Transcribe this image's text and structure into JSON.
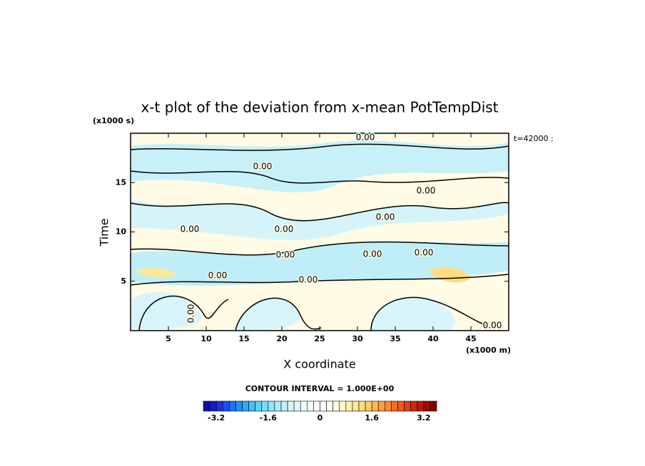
{
  "chart_data": {
    "type": "contour",
    "title": "x-t plot of the deviation from x-mean PotTempDist",
    "y_unit_label": "(x1000 s)",
    "x_unit_label": "(x1000 m)",
    "ylabel": "Time",
    "xlabel": "X coordinate",
    "time_label": "t=42000 :",
    "contour_interval_label": "CONTOUR INTERVAL = 1.000E+00",
    "contour_labels": [
      "0.00",
      "0.00",
      "0.00",
      "0.00",
      "0.00",
      "0.00",
      "0.00",
      "0.00",
      "0.00",
      "0.00",
      "0.00",
      "0.00",
      "0.00"
    ],
    "xlim": [
      0,
      50
    ],
    "ylim": [
      0,
      20
    ],
    "xticks": [
      5,
      10,
      15,
      20,
      25,
      30,
      35,
      40,
      45
    ],
    "yticks": [
      5,
      10,
      15
    ],
    "colorbar": {
      "levels": [
        -3.6,
        -3.4,
        -3.2,
        -3,
        -2.8,
        -2.6,
        -2.4,
        -2.2,
        -2,
        -1.8,
        -1.6,
        -1.4,
        -1.2,
        -1,
        -0.8,
        -0.6,
        -0.4,
        -0.2,
        0,
        0.2,
        0.4,
        0.6,
        0.8,
        1,
        1.2,
        1.4,
        1.6,
        1.8,
        2,
        2.2,
        2.4,
        2.6,
        2.8,
        3,
        3.2,
        3.4,
        3.6
      ],
      "colors": [
        "#1010a0",
        "#1a1ac8",
        "#2030e0",
        "#2050f0",
        "#2070f8",
        "#2090f8",
        "#30a8f8",
        "#40c0f8",
        "#60d0f8",
        "#78dcf8",
        "#90e4f8",
        "#a8ecf8",
        "#c0f0f8",
        "#d0f4fa",
        "#e0f8fc",
        "#eefcfe",
        "#f8feff",
        "#ffffff",
        "#ffffff",
        "#fffef4",
        "#fffce0",
        "#fff8c8",
        "#fff0b0",
        "#ffe898",
        "#ffdc80",
        "#ffcc68",
        "#ffb850",
        "#ffa040",
        "#ff8830",
        "#f87028",
        "#f05820",
        "#e04018",
        "#d02810",
        "#b81808",
        "#a00800",
        "#800000"
      ],
      "ticks": [
        -3.2,
        -1.6,
        0,
        1.6,
        3.2
      ]
    }
  }
}
